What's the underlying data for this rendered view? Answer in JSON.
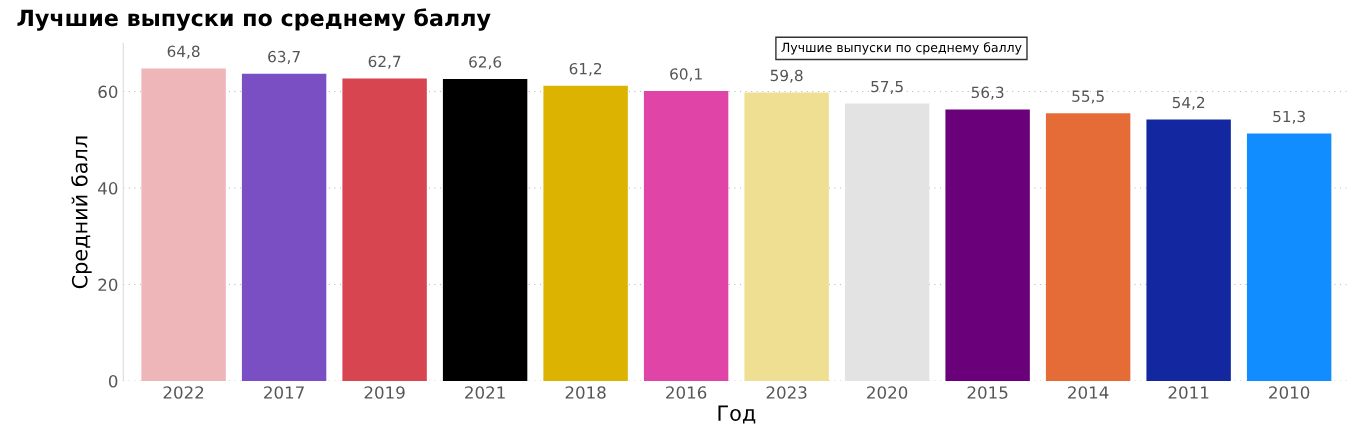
{
  "chart_data": {
    "type": "bar",
    "title": "Лучшие выпуски по среднему баллу",
    "xlabel": "Год",
    "ylabel": "Средний балл",
    "categories": [
      "2022",
      "2017",
      "2019",
      "2021",
      "2018",
      "2016",
      "2023",
      "2020",
      "2015",
      "2014",
      "2011",
      "2010"
    ],
    "values": [
      64.8,
      63.7,
      62.7,
      62.6,
      61.2,
      60.1,
      59.8,
      57.5,
      56.3,
      55.5,
      54.2,
      51.3
    ],
    "value_labels": [
      "64,8",
      "63,7",
      "62,7",
      "62,6",
      "61,2",
      "60,1",
      "59,8",
      "57,5",
      "56,3",
      "55,5",
      "54,2",
      "51,3"
    ],
    "colors": [
      "#efb6b9",
      "#7a4fc4",
      "#d64550",
      "#000000",
      "#dbb300",
      "#e044a7",
      "#eedf93",
      "#e3e3e3",
      "#6b007b",
      "#e66c37",
      "#1328a0",
      "#118dff"
    ],
    "ylim": [
      0,
      70
    ],
    "yticks": [
      0,
      20,
      40,
      60
    ],
    "grid": "y",
    "legend": false,
    "annotations": [
      "Лучшие выпуски по среднему баллу"
    ]
  }
}
